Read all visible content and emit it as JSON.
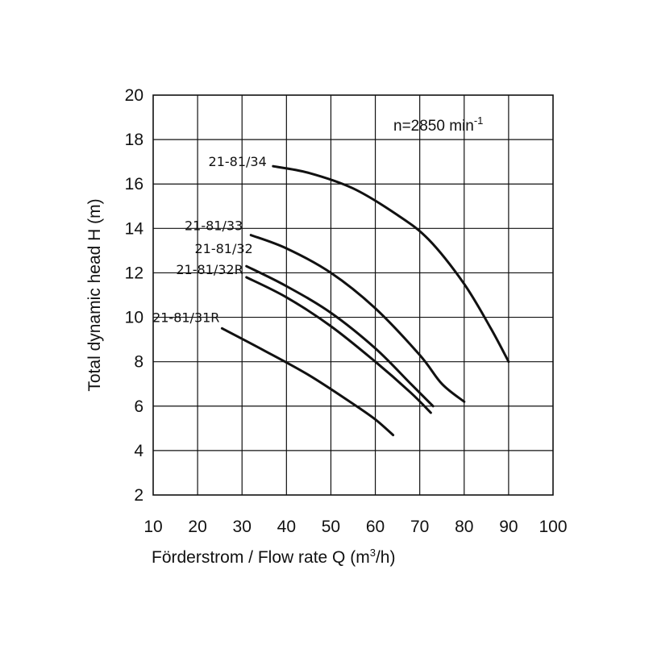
{
  "chart_data": {
    "type": "line",
    "title": "",
    "xlabel": "Förderstrom / Flow rate Q (m",
    "xlabel_sup": "3",
    "xlabel_end": "/h)",
    "ylabel": "Total dynamic head H (m)",
    "xlim": [
      10,
      100
    ],
    "ylim": [
      2,
      20
    ],
    "x_ticks": [
      "10",
      "20",
      "30",
      "40",
      "50",
      "60",
      "70",
      "80",
      "90",
      "100"
    ],
    "y_ticks": [
      "2",
      "4",
      "6",
      "8",
      "10",
      "12",
      "14",
      "16",
      "18",
      "20"
    ],
    "grid": true,
    "annotation": {
      "text": "n=2850 min",
      "sup": "-1"
    },
    "series": [
      {
        "name": "21-81/34",
        "x": [
          37,
          45,
          55,
          65,
          72,
          80,
          86,
          90
        ],
        "y": [
          16.8,
          16.5,
          15.8,
          14.6,
          13.5,
          11.5,
          9.5,
          8.0
        ]
      },
      {
        "name": "21-81/33",
        "x": [
          32,
          40,
          50,
          60,
          70,
          75,
          80
        ],
        "y": [
          13.7,
          13.1,
          12.0,
          10.4,
          8.3,
          7.0,
          6.2
        ]
      },
      {
        "name": "21-81/32",
        "x": [
          31,
          40,
          50,
          60,
          68,
          73
        ],
        "y": [
          12.3,
          11.4,
          10.2,
          8.6,
          7.0,
          6.0
        ]
      },
      {
        "name": "21-81/32R",
        "x": [
          31,
          40,
          50,
          60,
          68,
          72.5
        ],
        "y": [
          11.8,
          10.9,
          9.6,
          8.0,
          6.6,
          5.7
        ]
      },
      {
        "name": "21-81/31R",
        "x": [
          25.5,
          35,
          45,
          55,
          60,
          64
        ],
        "y": [
          9.5,
          8.5,
          7.4,
          6.1,
          5.4,
          4.7
        ]
      }
    ]
  }
}
